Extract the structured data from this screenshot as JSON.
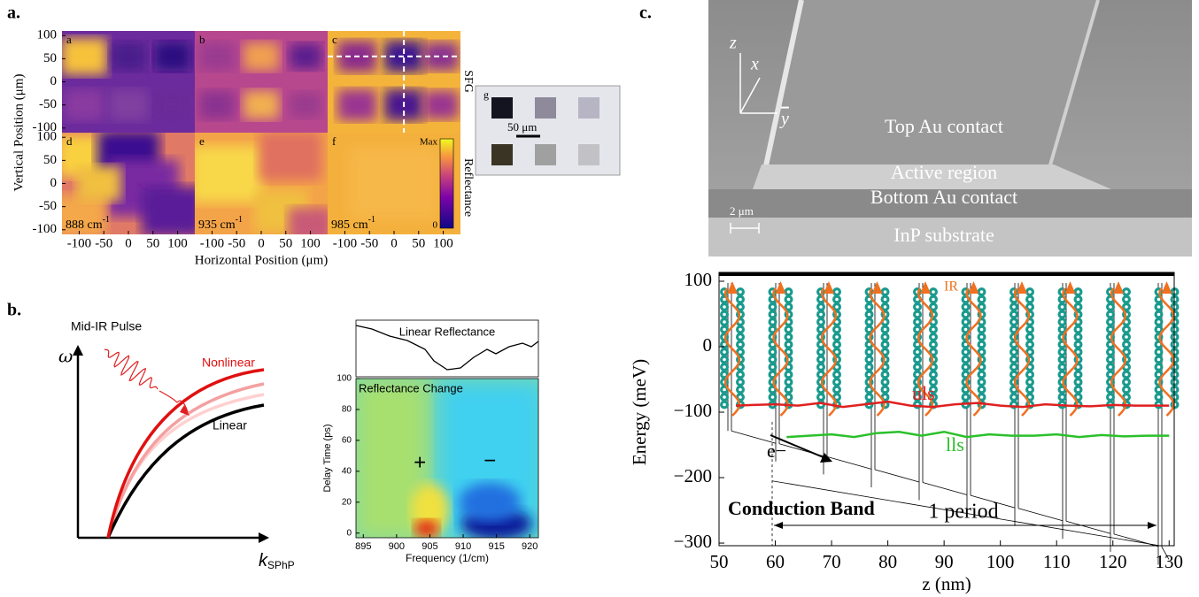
{
  "panel_a": {
    "label": "a.",
    "y_axis_label": "Vertical Position (μm)",
    "x_axis_label": "Horizontal Position (μm)",
    "xlim": [
      -135,
      135
    ],
    "ylim": [
      -110,
      110
    ],
    "xticks": [
      -100,
      -50,
      0,
      50,
      100
    ],
    "yticks": [
      100,
      50,
      0,
      -50,
      -100
    ],
    "subpanels": [
      {
        "label": "a"
      },
      {
        "label": "b"
      },
      {
        "label": "c"
      },
      {
        "label": "d",
        "wavenumber": "888 cm",
        "unit_exponent": "-1"
      },
      {
        "label": "e",
        "wavenumber": "935 cm",
        "unit_exponent": "-1"
      },
      {
        "label": "f",
        "wavenumber": "985 cm",
        "unit_exponent": "-1"
      }
    ],
    "row_labels": [
      "SFG",
      "Reflectance"
    ],
    "colorbar": {
      "max": "Max",
      "min": "0"
    },
    "inset": {
      "label": "g",
      "scale_bar": "50 μm"
    }
  },
  "panel_b": {
    "label": "b.",
    "schematic": {
      "pulse": "Mid-IR Pulse",
      "y_axis": "ω",
      "nonlinear": "Nonlinear",
      "linear": "Linear",
      "x_axis": "k",
      "x_axis_sub": "SPhP"
    },
    "spectrum": {
      "top_title": "Linear Reflectance",
      "map_title": "Reflectance Change",
      "y_label": "Delay Time (ps)",
      "x_label": "Frequency (1/cm)",
      "xlim": [
        893.9,
        921.3
      ],
      "ylim": [
        -3,
        100
      ],
      "xticks": [
        895,
        900,
        905,
        910,
        915,
        920
      ],
      "yticks": [
        0,
        20,
        40,
        60,
        80,
        100
      ],
      "plus": "+",
      "minus": "−"
    }
  },
  "panel_c": {
    "label": "c.",
    "sem": {
      "axis_z": "z",
      "axis_x": "x",
      "axis_y": "y",
      "layers": [
        "Top Au contact",
        "Active region",
        "Bottom Au contact",
        "InP substrate"
      ],
      "scale_bar": "2 μm"
    }
  },
  "chart_data": {
    "type": "line",
    "x_label": "z (nm)",
    "y_label": "Energy (meV)",
    "xlim": [
      50,
      130.9
    ],
    "ylim": [
      -304,
      113.5
    ],
    "xticks": [
      50,
      60,
      70,
      80,
      90,
      100,
      110,
      120,
      130
    ],
    "yticks": [
      100,
      0,
      {
        "value": -100,
        "label": "−100"
      },
      {
        "value": -200,
        "label": "−200"
      },
      {
        "value": -300,
        "label": "−300"
      }
    ],
    "series": [
      {
        "name": "uls",
        "color": "#e02020",
        "x": [
          53,
          56,
          60,
          64,
          68,
          72,
          76,
          80,
          84,
          88,
          92,
          96,
          100,
          104,
          108,
          112,
          116,
          120,
          124,
          128,
          130
        ],
        "values": [
          -90,
          -89,
          -88,
          -90,
          -86,
          -92,
          -88,
          -84,
          -90,
          -92,
          -88,
          -86,
          -90,
          -92,
          -88,
          -90,
          -91,
          -89,
          -90,
          -90,
          -90
        ]
      },
      {
        "name": "lls",
        "color": "#2bc02b",
        "x": [
          62,
          66,
          70,
          74,
          78,
          82,
          86,
          90,
          94,
          98,
          102,
          106,
          110,
          114,
          118,
          122,
          126,
          130
        ],
        "values": [
          -138,
          -136,
          -134,
          -138,
          -132,
          -130,
          -136,
          -130,
          -138,
          -134,
          -136,
          -136,
          -134,
          -138,
          -135,
          -137,
          -136,
          -136
        ]
      }
    ],
    "annotations": {
      "ir": "IR",
      "electron": "e−",
      "band": "Conduction Band",
      "period": "1 period"
    }
  }
}
